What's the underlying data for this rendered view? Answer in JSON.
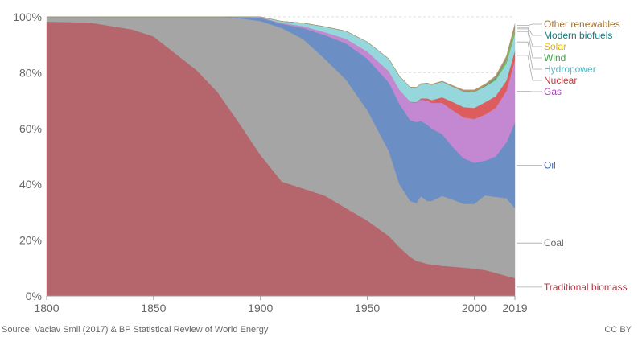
{
  "chart_data": {
    "type": "area",
    "stacked": true,
    "normalized": true,
    "xlim": [
      1800,
      2019
    ],
    "ylim": [
      0,
      100
    ],
    "x_ticks": [
      "1800",
      "1850",
      "1900",
      "1950",
      "2000",
      "2019"
    ],
    "y_ticks": [
      "0%",
      "20%",
      "40%",
      "60%",
      "80%",
      "100%"
    ],
    "grid": "horizontal dotted",
    "x": [
      1800,
      1820,
      1840,
      1850,
      1860,
      1870,
      1880,
      1890,
      1900,
      1910,
      1920,
      1930,
      1940,
      1950,
      1960,
      1965,
      1970,
      1973,
      1975,
      1978,
      1980,
      1985,
      1990,
      1995,
      2000,
      2005,
      2010,
      2015,
      2019
    ],
    "series": [
      {
        "name": "Traditional biomass",
        "color": "#b4666c",
        "values": [
          98.3,
          98,
          95.5,
          93,
          87,
          81,
          73,
          62,
          50.5,
          41,
          38.5,
          36,
          31.5,
          27,
          21.5,
          17.5,
          14,
          12.5,
          12.2,
          11.5,
          11.3,
          10.8,
          10.5,
          10.2,
          9.8,
          9.3,
          8.3,
          7.2,
          6.4
        ]
      },
      {
        "name": "Coal",
        "color": "#a5a5a5",
        "values": [
          1.7,
          2,
          4.5,
          7,
          13,
          19,
          27,
          37.5,
          48,
          55,
          53.5,
          49,
          46,
          39.5,
          30.5,
          22.5,
          20,
          20.8,
          23.5,
          22.5,
          22.7,
          25,
          24,
          22.8,
          23.2,
          26.7,
          27.2,
          27.8,
          25.1
        ]
      },
      {
        "name": "Oil",
        "color": "#6b8ec4",
        "values": [
          0,
          0,
          0,
          0,
          0,
          0,
          0,
          0.3,
          1.2,
          1.5,
          4,
          8.5,
          13,
          18.5,
          24.5,
          28.8,
          29,
          29,
          27,
          27.4,
          26,
          22.2,
          18.8,
          16.4,
          14.7,
          12.5,
          14.5,
          20,
          30.7
        ]
      },
      {
        "name": "Gas",
        "color": "#c487d1",
        "values": [
          0,
          0,
          0,
          0,
          0,
          0,
          0,
          0.1,
          0.1,
          0.3,
          0.6,
          1,
          1.6,
          2.5,
          4,
          5,
          6.5,
          7,
          7.7,
          8.6,
          9.2,
          11.2,
          13.2,
          14.6,
          15.7,
          16.5,
          17.4,
          18.4,
          22.3
        ]
      },
      {
        "name": "Nuclear",
        "color": "#dd5c5e",
        "values": [
          0,
          0,
          0,
          0,
          0,
          0,
          0,
          0,
          0,
          0,
          0,
          0,
          0,
          0,
          0,
          0,
          0.1,
          0.2,
          0.4,
          0.8,
          1,
          2,
          3,
          3.7,
          4,
          4.4,
          4.2,
          3.7,
          3.4
        ]
      },
      {
        "name": "Hydropower",
        "color": "#96d6dd",
        "values": [
          0,
          0,
          0,
          0,
          0,
          0,
          0,
          0.1,
          0.2,
          0.6,
          1.2,
          2,
          2.8,
          3.5,
          4.5,
          5,
          5.2,
          5.2,
          5.2,
          5.4,
          5.5,
          5.6,
          5.5,
          5.6,
          5.7,
          5.6,
          5.7,
          6.2,
          6.2
        ]
      },
      {
        "name": "Wind",
        "color": "#62b868",
        "values": [
          0,
          0,
          0,
          0,
          0,
          0,
          0,
          0,
          0,
          0,
          0,
          0,
          0,
          0,
          0,
          0,
          0,
          0,
          0,
          0,
          0,
          0,
          0,
          0,
          0.05,
          0.1,
          0.4,
          0.9,
          1.3
        ]
      },
      {
        "name": "Solar",
        "color": "#f2c42c",
        "values": [
          0,
          0,
          0,
          0,
          0,
          0,
          0,
          0,
          0,
          0,
          0,
          0,
          0,
          0,
          0,
          0,
          0,
          0,
          0,
          0,
          0,
          0,
          0,
          0,
          0,
          0,
          0.05,
          0.3,
          0.6
        ]
      },
      {
        "name": "Modern biofuels",
        "color": "#29918c",
        "values": [
          0,
          0,
          0,
          0,
          0,
          0,
          0,
          0,
          0,
          0,
          0,
          0,
          0,
          0,
          0,
          0,
          0,
          0,
          0,
          0,
          0,
          0,
          0,
          0.05,
          0.1,
          0.2,
          0.35,
          0.4,
          0.4
        ]
      },
      {
        "name": "Other renewables",
        "color": "#b8926a",
        "values": [
          0,
          0,
          0,
          0,
          0,
          0,
          0,
          0,
          0,
          0,
          0,
          0,
          0,
          0,
          0,
          0,
          0,
          0.1,
          0.1,
          0.1,
          0.2,
          0.2,
          0.4,
          0.5,
          0.6,
          0.6,
          0.8,
          1,
          1.1
        ]
      }
    ],
    "legend": {
      "placement": "right",
      "order_top_to_bottom": [
        "Other renewables",
        "Modern biofuels",
        "Solar",
        "Wind",
        "Hydropower",
        "Nuclear",
        "Gas",
        "Oil",
        "Coal",
        "Traditional biomass"
      ],
      "label_colors": {
        "Other renewables": "#9c7034",
        "Modern biofuels": "#16787a",
        "Solar": "#e0b000",
        "Wind": "#3f9a44",
        "Hydropower": "#4fb7c0",
        "Nuclear": "#c0393c",
        "Gas": "#a846b8",
        "Oil": "#3b5ea8",
        "Coal": "#666666",
        "Traditional biomass": "#a83c44"
      }
    }
  },
  "footer": {
    "source": "Source: Vaclav Smil (2017) & BP Statistical Review of World Energy",
    "license": "CC BY"
  }
}
